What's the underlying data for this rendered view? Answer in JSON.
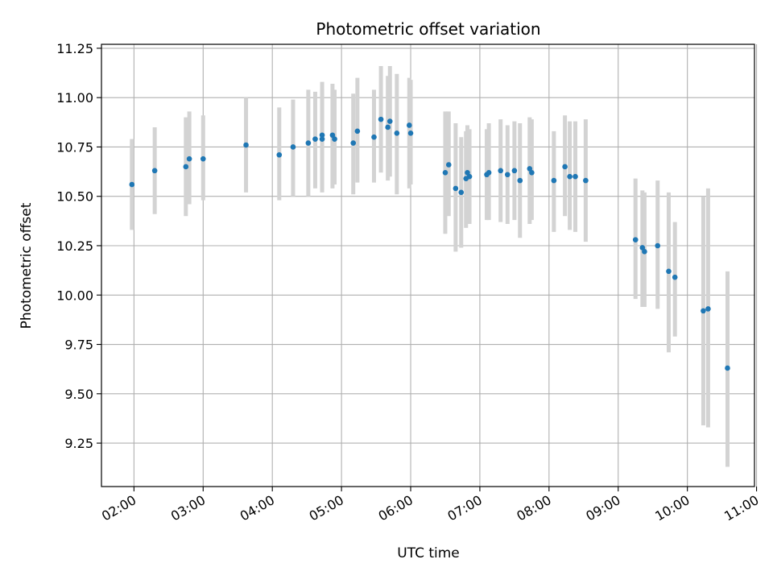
{
  "chart_data": {
    "type": "scatter",
    "title": "Photometric offset variation",
    "xlabel": "UTC time",
    "ylabel": "Photometric offset",
    "xlim": [
      1.53,
      10.97
    ],
    "ylim": [
      9.03,
      11.27
    ],
    "grid": true,
    "x_ticks": [
      2,
      3,
      4,
      5,
      6,
      7,
      8,
      9,
      10,
      11
    ],
    "x_tick_labels": [
      "02:00",
      "03:00",
      "04:00",
      "05:00",
      "06:00",
      "07:00",
      "08:00",
      "09:00",
      "10:00",
      "11:00"
    ],
    "y_ticks": [
      9.25,
      9.5,
      9.75,
      10.0,
      10.25,
      10.5,
      10.75,
      11.0,
      11.25
    ],
    "y_tick_labels": [
      "9.25",
      "9.50",
      "9.75",
      "10.00",
      "10.25",
      "10.50",
      "10.75",
      "11.00",
      "11.25"
    ],
    "colors": {
      "point": "#1f77b4",
      "errorbar": "#d3d3d3",
      "grid": "#b0b0b0"
    },
    "series": [
      {
        "name": "offset",
        "x_hours": [
          1.97,
          2.3,
          2.75,
          2.8,
          3.0,
          3.62,
          4.1,
          4.3,
          4.52,
          4.62,
          4.72,
          4.72,
          4.87,
          4.9,
          5.17,
          5.23,
          5.47,
          5.57,
          5.67,
          5.7,
          5.8,
          5.98,
          6.0,
          6.5,
          6.55,
          6.65,
          6.73,
          6.8,
          6.82,
          6.85,
          7.1,
          7.13,
          7.3,
          7.4,
          7.5,
          7.58,
          7.72,
          7.75,
          8.07,
          8.23,
          8.3,
          8.38,
          8.53,
          9.25,
          9.35,
          9.38,
          9.57,
          9.73,
          9.82,
          10.23,
          10.3,
          10.58
        ],
        "y": [
          10.56,
          10.63,
          10.65,
          10.69,
          10.69,
          10.76,
          10.71,
          10.75,
          10.77,
          10.79,
          10.81,
          10.79,
          10.81,
          10.79,
          10.77,
          10.83,
          10.8,
          10.89,
          10.85,
          10.88,
          10.82,
          10.86,
          10.82,
          10.62,
          10.66,
          10.54,
          10.52,
          10.59,
          10.62,
          10.6,
          10.61,
          10.62,
          10.63,
          10.61,
          10.63,
          10.58,
          10.64,
          10.62,
          10.58,
          10.65,
          10.6,
          10.6,
          10.58,
          10.28,
          10.24,
          10.22,
          10.25,
          10.12,
          10.09,
          9.92,
          9.93,
          9.63
        ],
        "err_low": [
          10.33,
          10.41,
          10.4,
          10.46,
          10.48,
          10.52,
          10.48,
          10.5,
          10.5,
          10.54,
          10.52,
          10.54,
          10.54,
          10.56,
          10.51,
          10.57,
          10.57,
          10.62,
          10.58,
          10.6,
          10.51,
          10.54,
          10.56,
          10.31,
          10.4,
          10.22,
          10.24,
          10.34,
          10.38,
          10.36,
          10.38,
          10.38,
          10.37,
          10.36,
          10.38,
          10.29,
          10.36,
          10.38,
          10.32,
          10.4,
          10.33,
          10.32,
          10.27,
          9.98,
          9.94,
          9.94,
          9.93,
          9.71,
          9.79,
          9.34,
          9.33,
          9.13
        ],
        "err_high": [
          10.79,
          10.85,
          10.9,
          10.93,
          10.91,
          11.0,
          10.95,
          10.99,
          11.04,
          11.03,
          11.08,
          11.04,
          11.07,
          11.04,
          11.02,
          11.1,
          11.04,
          11.16,
          11.11,
          11.16,
          11.12,
          11.1,
          11.09,
          10.93,
          10.93,
          10.87,
          10.8,
          10.83,
          10.86,
          10.84,
          10.84,
          10.87,
          10.89,
          10.86,
          10.88,
          10.87,
          10.9,
          10.89,
          10.83,
          10.91,
          10.88,
          10.88,
          10.89,
          10.59,
          10.53,
          10.52,
          10.58,
          10.52,
          10.37,
          10.5,
          10.54,
          10.12
        ]
      }
    ]
  }
}
